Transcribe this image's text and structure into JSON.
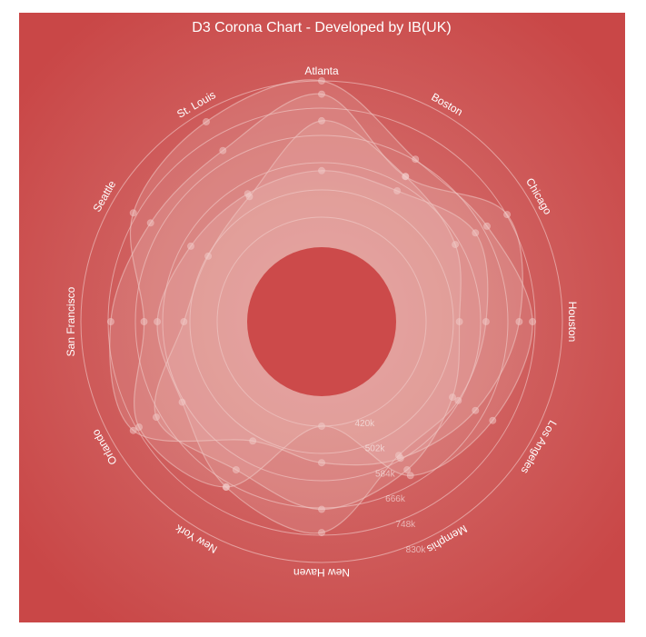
{
  "chart_data": {
    "type": "radar",
    "title": "D3 Corona Chart - Developed by IB(UK)",
    "categories": [
      "Atlanta",
      "Boston",
      "Chicago",
      "Houston",
      "Los Angeles",
      "Memphis",
      "New Haven",
      "New York",
      "Orlando",
      "San Francisco",
      "Seattle",
      "St. Louis"
    ],
    "ring_labels": [
      "420k",
      "502k",
      "584k",
      "666k",
      "748k",
      "830k"
    ],
    "ring_values": [
      420,
      502,
      584,
      666,
      748,
      830
    ],
    "r_domain": [
      338,
      830
    ],
    "units": "k",
    "grid": true,
    "series": [
      {
        "values": [
          830,
          670,
          680,
          740,
          700,
          640,
          420,
          680,
          740,
          640,
          760,
          800
        ]
      },
      {
        "values": [
          790,
          610,
          750,
          700,
          640,
          580,
          530,
          520,
          760,
          740,
          700,
          700
        ]
      },
      {
        "values": [
          710,
          610,
          570,
          520,
          560,
          620,
          670,
          620,
          680,
          520,
          500,
          540
        ]
      },
      {
        "values": [
          560,
          560,
          640,
          600,
          580,
          570,
          740,
          680,
          590,
          600,
          560,
          550
        ]
      }
    ],
    "colors": {
      "background": "#cc4a4a",
      "panel_center": "#d77a78",
      "panel_edge": "#c94747",
      "grid_line": "#ebb7b5",
      "text": "#ffffff",
      "series_fill": "#f3d2d0",
      "series_stroke": "#efc4c2",
      "frame_border": "#dddddd"
    }
  }
}
